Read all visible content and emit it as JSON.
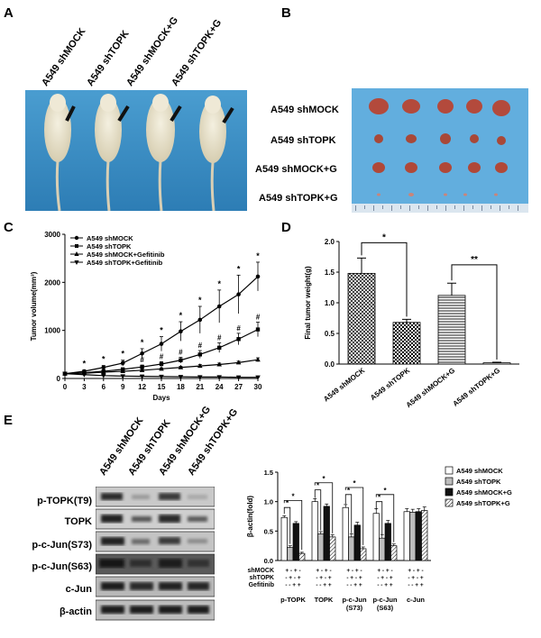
{
  "panels": {
    "A": "A",
    "B": "B",
    "C": "C",
    "D": "D",
    "E": "E"
  },
  "panelA": {
    "mice_labels": [
      "A549 shMOCK",
      "A549 shTOPK",
      "A549 shMOCK+G",
      "A549 shTOPK+G"
    ]
  },
  "panelB": {
    "rows": [
      "A549 shMOCK",
      "A549 shTOPK",
      "A549 shMOCK+G",
      "A549 shTOPK+G"
    ]
  },
  "chart_data": [
    {
      "type": "line",
      "panel": "C",
      "xlabel": "Days",
      "ylabel": "Tumor volume(mm³)",
      "x": [
        0,
        3,
        6,
        9,
        12,
        15,
        18,
        21,
        24,
        27,
        30
      ],
      "xticks": [
        "0",
        "3",
        "6",
        "9",
        "12",
        "15",
        "18",
        "21",
        "24",
        "27",
        "30"
      ],
      "yticks": [
        "0",
        "1000",
        "2000",
        "3000"
      ],
      "ylim": [
        0,
        3000
      ],
      "xlim": [
        0,
        30
      ],
      "series": [
        {
          "name": "A549 shMOCK",
          "marker": "circle",
          "values": [
            100,
            150,
            230,
            320,
            520,
            720,
            980,
            1220,
            1500,
            1750,
            2120
          ],
          "err": [
            10,
            30,
            40,
            60,
            100,
            150,
            200,
            280,
            340,
            400,
            300
          ]
        },
        {
          "name": "A549 shTOPK",
          "marker": "square",
          "values": [
            100,
            120,
            150,
            190,
            240,
            300,
            380,
            500,
            640,
            820,
            1020
          ],
          "err": [
            10,
            20,
            25,
            30,
            40,
            50,
            60,
            80,
            100,
            120,
            150
          ]
        },
        {
          "name": "A549 shMOCK+Gefitinib",
          "marker": "triangle",
          "values": [
            100,
            110,
            130,
            150,
            170,
            200,
            230,
            260,
            290,
            330,
            390
          ],
          "err": [
            5,
            10,
            15,
            15,
            20,
            20,
            25,
            30,
            30,
            30,
            40
          ]
        },
        {
          "name": "A549 shTOPK+Gefitinib",
          "marker": "triangle-down",
          "values": [
            100,
            80,
            60,
            50,
            45,
            40,
            35,
            30,
            30,
            25,
            25
          ],
          "err": [
            5,
            5,
            5,
            5,
            5,
            5,
            5,
            5,
            5,
            5,
            5
          ]
        }
      ],
      "stars": [
        "*",
        "*",
        "*",
        "*",
        "*",
        "*",
        "*",
        "*",
        "*",
        "*"
      ],
      "hashes": [
        "#",
        "#",
        "#",
        "#",
        "#",
        "#",
        "#",
        "#"
      ],
      "legend": "top-left"
    },
    {
      "type": "bar",
      "panel": "D",
      "ylabel": "Final tumor weight(g)",
      "categories": [
        "A549 shMOCK",
        "A549 shTOPK",
        "A549 shMOCK+G",
        "A549 shTOPK+G"
      ],
      "values": [
        1.48,
        0.68,
        1.12,
        0.02
      ],
      "err": [
        0.25,
        0.05,
        0.2,
        0.01
      ],
      "yticks": [
        "0.0",
        "0.5",
        "1.0",
        "1.5",
        "2.0"
      ],
      "ylim": [
        0,
        2.0
      ],
      "significance": [
        {
          "between": [
            0,
            1
          ],
          "label": "*"
        },
        {
          "between": [
            2,
            3
          ],
          "label": "**"
        }
      ]
    },
    {
      "type": "bar",
      "panel": "E",
      "ylabel": "β-actin(fold)",
      "groups": [
        "p-TOPK",
        "TOPK",
        "p-c-Jun\n(S73)",
        "p-c-Jun\n(S63)",
        "c-Jun"
      ],
      "group_labels": [
        "p-TOPK",
        "TOPK",
        "p-c-Jun",
        "p-c-Jun",
        "c-Jun"
      ],
      "group_sublabels": [
        "",
        "",
        "(S73)",
        "(S63)",
        ""
      ],
      "series": [
        {
          "name": "A549 shMOCK",
          "values": [
            0.73,
            1.0,
            0.9,
            0.8,
            0.83
          ]
        },
        {
          "name": "A549 shTOPK",
          "values": [
            0.22,
            0.45,
            0.4,
            0.38,
            0.82
          ]
        },
        {
          "name": "A549 shMOCK+G",
          "values": [
            0.63,
            0.92,
            0.6,
            0.63,
            0.83
          ]
        },
        {
          "name": "A549 shTOPK+G",
          "values": [
            0.12,
            0.4,
            0.2,
            0.25,
            0.85
          ]
        }
      ],
      "err": [
        [
          0.03,
          0.05,
          0.05,
          0.08,
          0.05
        ],
        [
          0.03,
          0.04,
          0.05,
          0.06,
          0.05
        ],
        [
          0.03,
          0.04,
          0.05,
          0.05,
          0.05
        ],
        [
          0.02,
          0.04,
          0.03,
          0.03,
          0.06
        ]
      ],
      "yticks": [
        "0.0",
        "0.5",
        "1.0",
        "1.5"
      ],
      "ylim": [
        0,
        1.5
      ],
      "condition_rows": [
        {
          "label": "shMOCK",
          "signs": "+ - + -"
        },
        {
          "label": "shTOPK",
          "signs": "- + - +"
        },
        {
          "label": "Gefitinib",
          "signs": "- - + +"
        }
      ],
      "star": "*",
      "legend": "top-right"
    }
  ],
  "panelE": {
    "lane_labels": [
      "A549 shMOCK",
      "A549 shTOPK",
      "A549 shMOCK+G",
      "A549 shTOPK+G"
    ],
    "blot_labels": [
      "p-TOPK(T9)",
      "TOPK",
      "p-c-Jun(S73)",
      "p-c-Jun(S63)",
      "c-Jun",
      "β-actin"
    ]
  },
  "colors": {
    "photoA": "#3b8fc4",
    "photoB": "#5aa6d6"
  }
}
